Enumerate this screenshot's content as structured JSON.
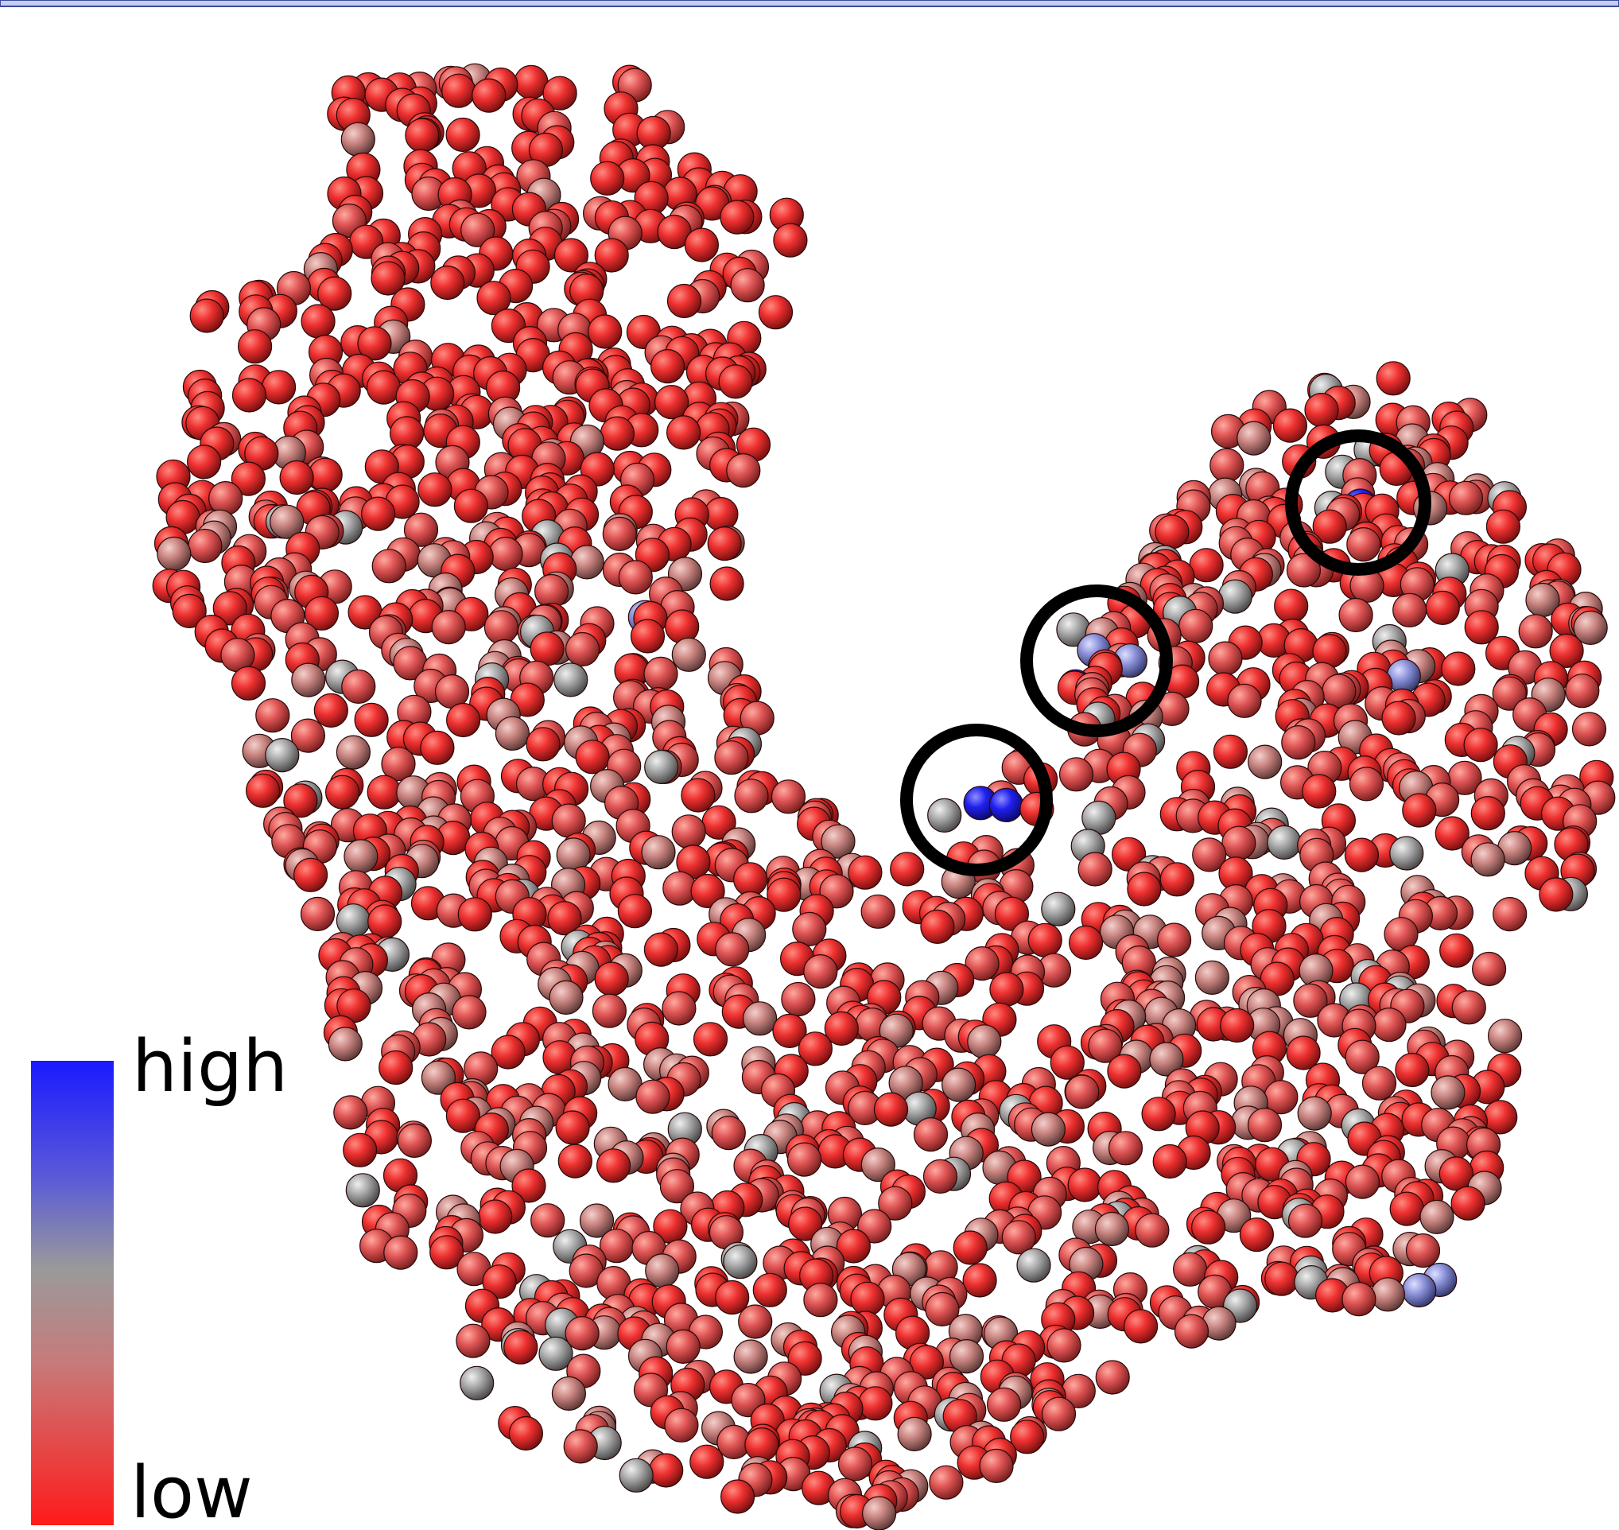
{
  "legend": {
    "high": "high",
    "low": "low"
  }
}
